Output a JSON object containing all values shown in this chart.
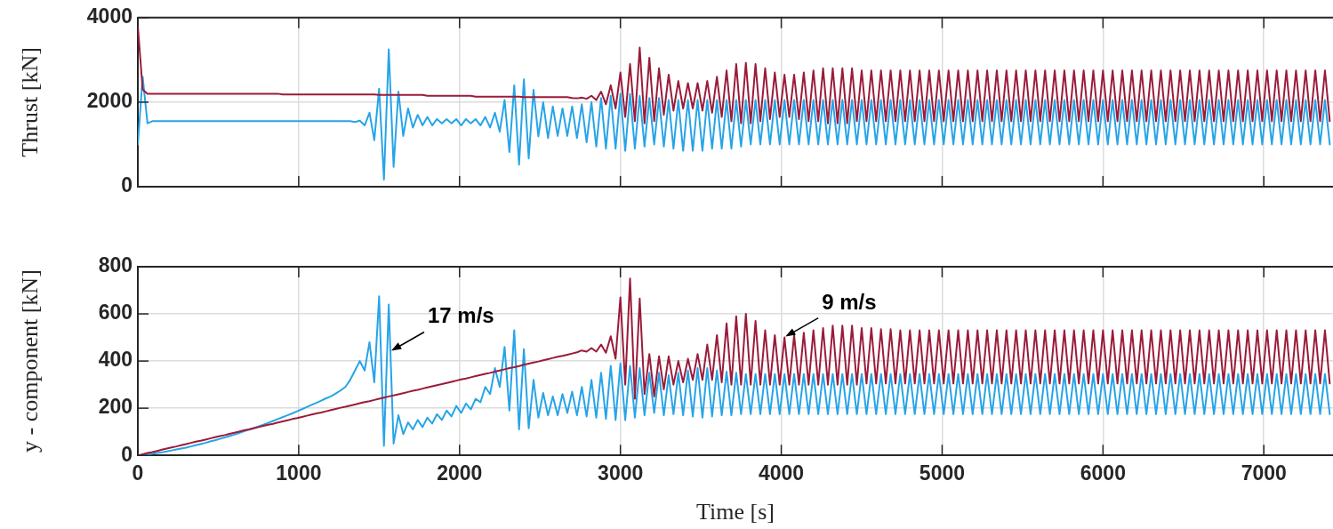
{
  "chart_data": [
    {
      "type": "line",
      "ylabel": "Thrust [kN]",
      "xlim": [
        0,
        7430
      ],
      "xticks": [
        0,
        1000,
        2000,
        3000,
        4000,
        5000,
        6000,
        7000
      ],
      "ylim": [
        0,
        4000
      ],
      "yticks": [
        0,
        2000,
        4000
      ],
      "grid": true,
      "tick_labels": "y",
      "legend": false,
      "marker": "none",
      "line_style": "solid",
      "x": [
        0,
        30,
        60,
        90,
        120,
        150,
        180,
        210,
        240,
        270,
        300,
        330,
        360,
        390,
        420,
        450,
        480,
        510,
        540,
        570,
        600,
        630,
        660,
        690,
        720,
        750,
        780,
        810,
        840,
        870,
        900,
        930,
        960,
        990,
        1020,
        1050,
        1080,
        1110,
        1140,
        1170,
        1200,
        1230,
        1260,
        1290,
        1320,
        1350,
        1380,
        1410,
        1440,
        1470,
        1500,
        1530,
        1560,
        1590,
        1620,
        1650,
        1680,
        1710,
        1740,
        1770,
        1800,
        1830,
        1860,
        1890,
        1920,
        1950,
        1980,
        2010,
        2040,
        2070,
        2100,
        2130,
        2160,
        2190,
        2220,
        2250,
        2280,
        2310,
        2340,
        2370,
        2400,
        2430,
        2460,
        2490,
        2520,
        2550,
        2580,
        2610,
        2640,
        2670,
        2700,
        2730,
        2760,
        2790,
        2820,
        2850,
        2880,
        2910,
        2940,
        2970,
        3000,
        3030,
        3060,
        3090,
        3120,
        3150,
        3180,
        3210,
        3240,
        3270,
        3300,
        3330,
        3360,
        3390,
        3420,
        3450,
        3480,
        3510,
        3540,
        3570,
        3600,
        3630,
        3660,
        3690,
        3720,
        3750,
        3780,
        3810,
        3840,
        3870,
        3900,
        3930,
        3960,
        3990,
        4020,
        4050,
        4080,
        4110,
        4140,
        4170,
        4200,
        4230,
        4260,
        4290,
        4320,
        4350,
        4380,
        4410,
        4440,
        4470,
        4500,
        4530,
        4560,
        4590,
        4620,
        4650,
        4680,
        4710,
        4740,
        4770,
        4800,
        4830,
        4860,
        4890,
        4920,
        4950,
        4980,
        5010,
        5040,
        5070,
        5100,
        5130,
        5160,
        5190,
        5220,
        5250,
        5280,
        5310,
        5340,
        5370,
        5400,
        5430,
        5460,
        5490,
        5520,
        5550,
        5580,
        5610,
        5640,
        5670,
        5700,
        5730,
        5760,
        5790,
        5820,
        5850,
        5880,
        5910,
        5940,
        5970,
        6000,
        6030,
        6060,
        6090,
        6120,
        6150,
        6180,
        6210,
        6240,
        6270,
        6300,
        6330,
        6360,
        6390,
        6420,
        6450,
        6480,
        6510,
        6540,
        6570,
        6600,
        6630,
        6660,
        6690,
        6720,
        6750,
        6780,
        6810,
        6840,
        6870,
        6900,
        6930,
        6960,
        6990,
        7020,
        7050,
        7080,
        7110,
        7140,
        7170,
        7200,
        7230,
        7260,
        7290,
        7320,
        7350,
        7380,
        7410
      ],
      "series": [
        {
          "color": "#9b1b3a",
          "values": [
            3800,
            2300,
            2200,
            2200,
            2200,
            2200,
            2200,
            2200,
            2200,
            2200,
            2200,
            2200,
            2200,
            2200,
            2200,
            2200,
            2200,
            2200,
            2200,
            2200,
            2200,
            2200,
            2200,
            2200,
            2200,
            2200,
            2200,
            2200,
            2200,
            2200,
            2180,
            2180,
            2180,
            2180,
            2180,
            2180,
            2180,
            2180,
            2180,
            2180,
            2180,
            2180,
            2180,
            2180,
            2180,
            2180,
            2180,
            2180,
            2180,
            2180,
            2170,
            2170,
            2170,
            2170,
            2170,
            2170,
            2170,
            2170,
            2170,
            2170,
            2150,
            2150,
            2150,
            2150,
            2150,
            2150,
            2150,
            2150,
            2150,
            2150,
            2130,
            2130,
            2130,
            2130,
            2130,
            2130,
            2130,
            2130,
            2130,
            2130,
            2120,
            2120,
            2120,
            2120,
            2120,
            2120,
            2120,
            2120,
            2120,
            2120,
            2100,
            2090,
            2110,
            2080,
            2150,
            2050,
            2250,
            1950,
            2400,
            1850,
            2700,
            1650,
            2900,
            1550,
            3290,
            1500,
            3050,
            1550,
            2800,
            1700,
            2650,
            1800,
            2500,
            1850,
            2450,
            1850,
            2450,
            1800,
            2500,
            1750,
            2600,
            1650,
            2750,
            1550,
            2900,
            1500,
            2930,
            1500,
            2900,
            1550,
            2800,
            1600,
            2700,
            1650,
            2650,
            1650,
            2650,
            1600,
            2700,
            1550,
            2750,
            1550,
            2800,
            1500,
            2800,
            1500,
            2800,
            1500,
            2800,
            1550,
            2750,
            1550,
            2750,
            1550,
            2750,
            1550,
            2750,
            1550,
            2750,
            1550,
            2750,
            1550,
            2750,
            1550,
            2750,
            1550,
            2750,
            1550,
            2750,
            1550,
            2750,
            1550,
            2750,
            1550,
            2750,
            1550,
            2750,
            1550,
            2750,
            1550,
            2750,
            1550,
            2750,
            1550,
            2750,
            1550,
            2750,
            1550,
            2750,
            1550,
            2750,
            1550,
            2750,
            1550,
            2750,
            1550,
            2750,
            1550,
            2750,
            1550,
            2750,
            1550,
            2750,
            1550,
            2750,
            1550,
            2750,
            1550,
            2750,
            1550,
            2750,
            1550,
            2750,
            1550,
            2750,
            1550,
            2750,
            1550,
            2750,
            1550,
            2750,
            1550,
            2750,
            1550,
            2750,
            1550,
            2750,
            1550,
            2750,
            1550,
            2750,
            1550,
            2750,
            1550,
            2750,
            1550,
            2750,
            1550,
            2750,
            1550,
            2750,
            1550,
            2750,
            1550,
            2750,
            1550,
            2750,
            1550
          ]
        },
        {
          "color": "#27a4e8",
          "values": [
            1000,
            2600,
            1500,
            1550,
            1550,
            1550,
            1550,
            1550,
            1550,
            1550,
            1550,
            1550,
            1550,
            1550,
            1550,
            1550,
            1550,
            1550,
            1550,
            1550,
            1550,
            1550,
            1550,
            1550,
            1550,
            1550,
            1550,
            1550,
            1550,
            1550,
            1550,
            1550,
            1550,
            1550,
            1550,
            1550,
            1550,
            1550,
            1550,
            1550,
            1550,
            1550,
            1550,
            1550,
            1550,
            1530,
            1560,
            1450,
            1750,
            1100,
            2320,
            170,
            3250,
            470,
            2250,
            1200,
            1850,
            1400,
            1700,
            1450,
            1650,
            1450,
            1600,
            1500,
            1600,
            1500,
            1600,
            1450,
            1600,
            1500,
            1600,
            1450,
            1650,
            1400,
            1750,
            1300,
            2050,
            820,
            2400,
            520,
            2540,
            670,
            2290,
            1190,
            2000,
            1150,
            1900,
            1200,
            1850,
            1200,
            1900,
            1150,
            1950,
            1050,
            2000,
            950,
            2100,
            900,
            2150,
            900,
            2200,
            850,
            2200,
            900,
            2150,
            950,
            2100,
            1000,
            2100,
            950,
            2050,
            900,
            2050,
            850,
            2050,
            850,
            2050,
            850,
            2050,
            900,
            2050,
            900,
            2050,
            900,
            2050,
            950,
            2050,
            1000,
            2050,
            1000,
            2050,
            1000,
            2050,
            1000,
            2050,
            1000,
            2050,
            1000,
            2050,
            1000,
            2050,
            1000,
            2050,
            1000,
            2050,
            1000,
            2050,
            1000,
            2050,
            1000,
            2050,
            1000,
            2050,
            1000,
            2050,
            1000,
            2050,
            1000,
            2050,
            1000,
            2050,
            1000,
            2050,
            1000,
            2050,
            1000,
            2050,
            1000,
            2050,
            1000,
            2050,
            1000,
            2050,
            1000,
            2050,
            1000,
            2050,
            1000,
            2050,
            1000,
            2050,
            1000,
            2050,
            1000,
            2050,
            1000,
            2050,
            1000,
            2050,
            1000,
            2050,
            1000,
            2050,
            1000,
            2050,
            1000,
            2050,
            1000,
            2050,
            1000,
            2050,
            1000,
            2050,
            1000,
            2050,
            1000,
            2050,
            1000,
            2050,
            1000,
            2050,
            1000,
            2050,
            1000,
            2050,
            1000,
            2050,
            1000,
            2050,
            1000,
            2050,
            1000,
            2050,
            1000,
            2050,
            1000,
            2050,
            1000,
            2050,
            1000,
            2050,
            1000,
            2050,
            1000,
            2050,
            1000,
            2050,
            1000,
            2050,
            1000,
            2050,
            1000,
            2050,
            1000,
            2050,
            1000,
            2050,
            1000
          ]
        }
      ]
    },
    {
      "type": "line",
      "xlabel": "Time [s]",
      "ylabel": "y - component [kN]",
      "xlim": [
        0,
        7430
      ],
      "xticks": [
        0,
        1000,
        2000,
        3000,
        4000,
        5000,
        6000,
        7000
      ],
      "ylim": [
        0,
        800
      ],
      "yticks": [
        0,
        200,
        400,
        600,
        800
      ],
      "grid": true,
      "legend": false,
      "marker": "none",
      "line_style": "solid",
      "annotations": [
        {
          "text": "17 m/s",
          "x": 1570,
          "y": 440
        },
        {
          "text": "9 m/s",
          "x": 4020,
          "y": 500
        }
      ],
      "x": [
        0,
        30,
        60,
        90,
        120,
        150,
        180,
        210,
        240,
        270,
        300,
        330,
        360,
        390,
        420,
        450,
        480,
        510,
        540,
        570,
        600,
        630,
        660,
        690,
        720,
        750,
        780,
        810,
        840,
        870,
        900,
        930,
        960,
        990,
        1020,
        1050,
        1080,
        1110,
        1140,
        1170,
        1200,
        1230,
        1260,
        1290,
        1320,
        1350,
        1380,
        1410,
        1440,
        1470,
        1500,
        1530,
        1560,
        1590,
        1620,
        1650,
        1680,
        1710,
        1740,
        1770,
        1800,
        1830,
        1860,
        1890,
        1920,
        1950,
        1980,
        2010,
        2040,
        2070,
        2100,
        2130,
        2160,
        2190,
        2220,
        2250,
        2280,
        2310,
        2340,
        2370,
        2400,
        2430,
        2460,
        2490,
        2520,
        2550,
        2580,
        2610,
        2640,
        2670,
        2700,
        2730,
        2760,
        2790,
        2820,
        2850,
        2880,
        2910,
        2940,
        2970,
        3000,
        3030,
        3060,
        3090,
        3120,
        3150,
        3180,
        3210,
        3240,
        3270,
        3300,
        3330,
        3360,
        3390,
        3420,
        3450,
        3480,
        3510,
        3540,
        3570,
        3600,
        3630,
        3660,
        3690,
        3720,
        3750,
        3780,
        3810,
        3840,
        3870,
        3900,
        3930,
        3960,
        3990,
        4020,
        4050,
        4080,
        4110,
        4140,
        4170,
        4200,
        4230,
        4260,
        4290,
        4320,
        4350,
        4380,
        4410,
        4440,
        4470,
        4500,
        4530,
        4560,
        4590,
        4620,
        4650,
        4680,
        4710,
        4740,
        4770,
        4800,
        4830,
        4860,
        4890,
        4920,
        4950,
        4980,
        5010,
        5040,
        5070,
        5100,
        5130,
        5160,
        5190,
        5220,
        5250,
        5280,
        5310,
        5340,
        5370,
        5400,
        5430,
        5460,
        5490,
        5520,
        5550,
        5580,
        5610,
        5640,
        5670,
        5700,
        5730,
        5760,
        5790,
        5820,
        5850,
        5880,
        5910,
        5940,
        5970,
        6000,
        6030,
        6060,
        6090,
        6120,
        6150,
        6180,
        6210,
        6240,
        6270,
        6300,
        6330,
        6360,
        6390,
        6420,
        6450,
        6480,
        6510,
        6540,
        6570,
        6600,
        6630,
        6660,
        6690,
        6720,
        6750,
        6780,
        6810,
        6840,
        6870,
        6900,
        6930,
        6960,
        6990,
        7020,
        7050,
        7080,
        7110,
        7140,
        7170,
        7200,
        7230,
        7260,
        7290,
        7320,
        7350,
        7380,
        7410
      ],
      "series": [
        {
          "color": "#9b1b3a",
          "values": [
            0,
            5,
            10,
            14,
            19,
            24,
            29,
            34,
            38,
            43,
            48,
            53,
            58,
            62,
            67,
            72,
            77,
            82,
            86,
            91,
            96,
            101,
            106,
            110,
            115,
            120,
            125,
            130,
            134,
            139,
            144,
            149,
            154,
            158,
            163,
            168,
            173,
            178,
            182,
            187,
            192,
            197,
            202,
            206,
            211,
            216,
            221,
            226,
            230,
            235,
            240,
            245,
            250,
            254,
            259,
            264,
            269,
            274,
            278,
            283,
            288,
            293,
            298,
            302,
            307,
            312,
            317,
            322,
            326,
            331,
            336,
            341,
            346,
            350,
            355,
            360,
            365,
            370,
            374,
            379,
            384,
            389,
            394,
            398,
            403,
            408,
            413,
            418,
            422,
            427,
            432,
            437,
            445,
            440,
            455,
            440,
            470,
            435,
            505,
            410,
            670,
            300,
            750,
            240,
            665,
            260,
            430,
            250,
            420,
            280,
            420,
            300,
            400,
            310,
            410,
            320,
            430,
            320,
            470,
            320,
            510,
            310,
            560,
            300,
            590,
            300,
            600,
            300,
            570,
            300,
            530,
            300,
            510,
            300,
            500,
            300,
            510,
            300,
            520,
            300,
            530,
            300,
            540,
            300,
            550,
            300,
            550,
            300,
            550,
            300,
            540,
            305,
            540,
            305,
            535,
            305,
            535,
            305,
            530,
            305,
            530,
            305,
            530,
            305,
            530,
            305,
            530,
            305,
            530,
            305,
            530,
            305,
            530,
            305,
            530,
            305,
            530,
            305,
            530,
            305,
            530,
            305,
            530,
            305,
            530,
            305,
            530,
            305,
            530,
            305,
            530,
            305,
            530,
            305,
            530,
            305,
            530,
            305,
            530,
            305,
            530,
            305,
            530,
            305,
            530,
            305,
            530,
            305,
            530,
            305,
            530,
            305,
            530,
            305,
            530,
            305,
            530,
            305,
            530,
            305,
            530,
            305,
            530,
            305,
            530,
            305,
            530,
            305,
            530,
            305,
            530,
            305,
            530,
            305,
            530,
            305,
            530,
            305,
            530,
            305,
            530,
            305,
            530,
            305,
            530,
            305,
            530,
            305
          ]
        },
        {
          "color": "#27a4e8",
          "values": [
            0,
            2,
            4,
            7,
            10,
            13,
            17,
            21,
            25,
            29,
            33,
            38,
            43,
            48,
            53,
            59,
            64,
            70,
            76,
            82,
            88,
            95,
            102,
            109,
            116,
            123,
            130,
            138,
            146,
            154,
            162,
            170,
            178,
            187,
            196,
            205,
            214,
            223,
            232,
            242,
            250,
            262,
            275,
            290,
            320,
            360,
            400,
            360,
            480,
            310,
            675,
            40,
            640,
            50,
            170,
            90,
            140,
            110,
            150,
            120,
            160,
            135,
            175,
            150,
            190,
            165,
            210,
            180,
            220,
            195,
            240,
            225,
            290,
            260,
            370,
            290,
            460,
            190,
            530,
            110,
            450,
            115,
            320,
            160,
            265,
            170,
            250,
            170,
            260,
            180,
            270,
            170,
            290,
            165,
            320,
            160,
            350,
            155,
            380,
            150,
            390,
            150,
            380,
            160,
            370,
            170,
            350,
            180,
            350,
            170,
            340,
            175,
            350,
            170,
            360,
            165,
            370,
            160,
            370,
            165,
            360,
            170,
            355,
            170,
            350,
            175,
            345,
            175,
            345,
            175,
            345,
            175,
            345,
            175,
            345,
            175,
            345,
            175,
            345,
            175,
            345,
            175,
            345,
            175,
            345,
            175,
            345,
            175,
            345,
            175,
            345,
            175,
            345,
            175,
            345,
            175,
            345,
            175,
            345,
            175,
            345,
            175,
            345,
            175,
            345,
            175,
            345,
            175,
            345,
            175,
            345,
            175,
            345,
            175,
            345,
            175,
            345,
            175,
            345,
            175,
            345,
            175,
            345,
            175,
            345,
            175,
            345,
            175,
            345,
            175,
            345,
            175,
            345,
            175,
            345,
            175,
            345,
            175,
            345,
            175,
            345,
            175,
            345,
            175,
            345,
            175,
            345,
            175,
            345,
            175,
            345,
            175,
            345,
            175,
            345,
            175,
            345,
            175,
            345,
            175,
            345,
            175,
            345,
            175,
            345,
            175,
            345,
            175,
            345,
            175,
            345,
            175,
            345,
            175,
            345,
            175,
            345,
            175,
            345,
            175,
            345,
            175,
            345,
            175,
            345,
            175,
            345,
            175
          ]
        }
      ]
    }
  ]
}
